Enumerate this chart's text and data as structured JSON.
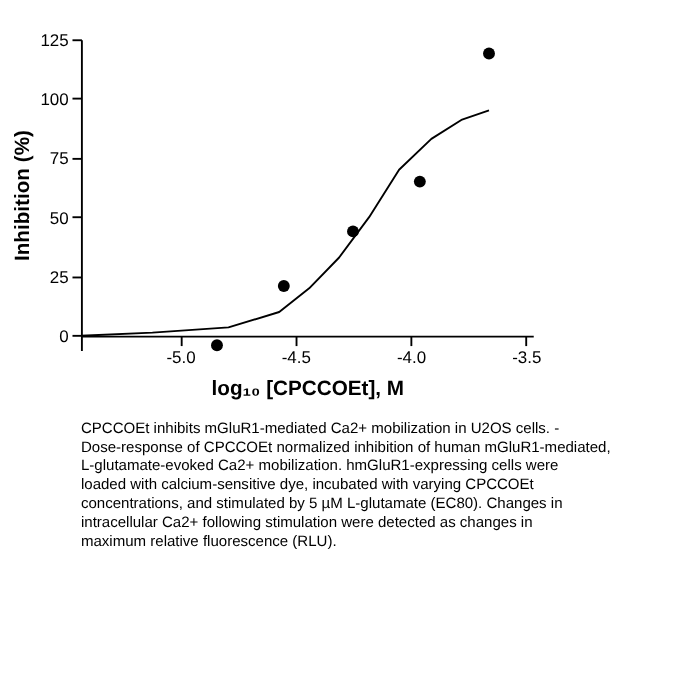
{
  "chart_data": {
    "type": "scatter",
    "xlabel": "log₁₀ [CPCCOEt], M",
    "ylabel": "Inhibition (%)",
    "xlim": [
      -5.43,
      -3.47
    ],
    "ylim": [
      -6,
      125
    ],
    "xticks": [
      {
        "value": -5,
        "label": "-5.0"
      },
      {
        "value": -4.5,
        "label": "-4.5"
      },
      {
        "value": -4,
        "label": "-4.0"
      },
      {
        "value": -3.5,
        "label": "-3.5"
      }
    ],
    "yticks": [
      0,
      25,
      50,
      75,
      100,
      125
    ],
    "grid": false,
    "series": [
      {
        "type": "scatter",
        "marker": "circle",
        "color": "#000000",
        "x": [
          -4.84,
          -4.55,
          -4.25,
          -3.96,
          -3.66
        ],
        "values": [
          -4,
          21,
          44,
          65,
          119
        ]
      },
      {
        "type": "line",
        "line_style": "solid",
        "color": "#000000",
        "x": [
          -5.43,
          -5.12,
          -4.79,
          -4.57,
          -4.44,
          -4.31,
          -4.18,
          -4.05,
          -3.91,
          -3.78,
          -3.66
        ],
        "values": [
          0,
          1.3,
          3.5,
          10,
          20,
          33,
          50,
          70,
          83,
          91,
          95
        ]
      }
    ],
    "annotations": [
      "CPCCOEt inhibits mGluR1-mediated Ca2+ mobilization in U2OS cells. - Dose-response of CPCCOEt normalized inhibition of human mGluR1-mediated, L-glutamate-evoked Ca2+ mobilization. hmGluR1-expressing cells were loaded with calcium-sensitive dye, incubated with varying CPCCOEt concentrations, and stimulated by 5 µM L-glutamate (EC80). Changes in intracellular Ca2+ following stimulation were detected as changes in maximum relative fluorescence (RLU)."
    ]
  }
}
